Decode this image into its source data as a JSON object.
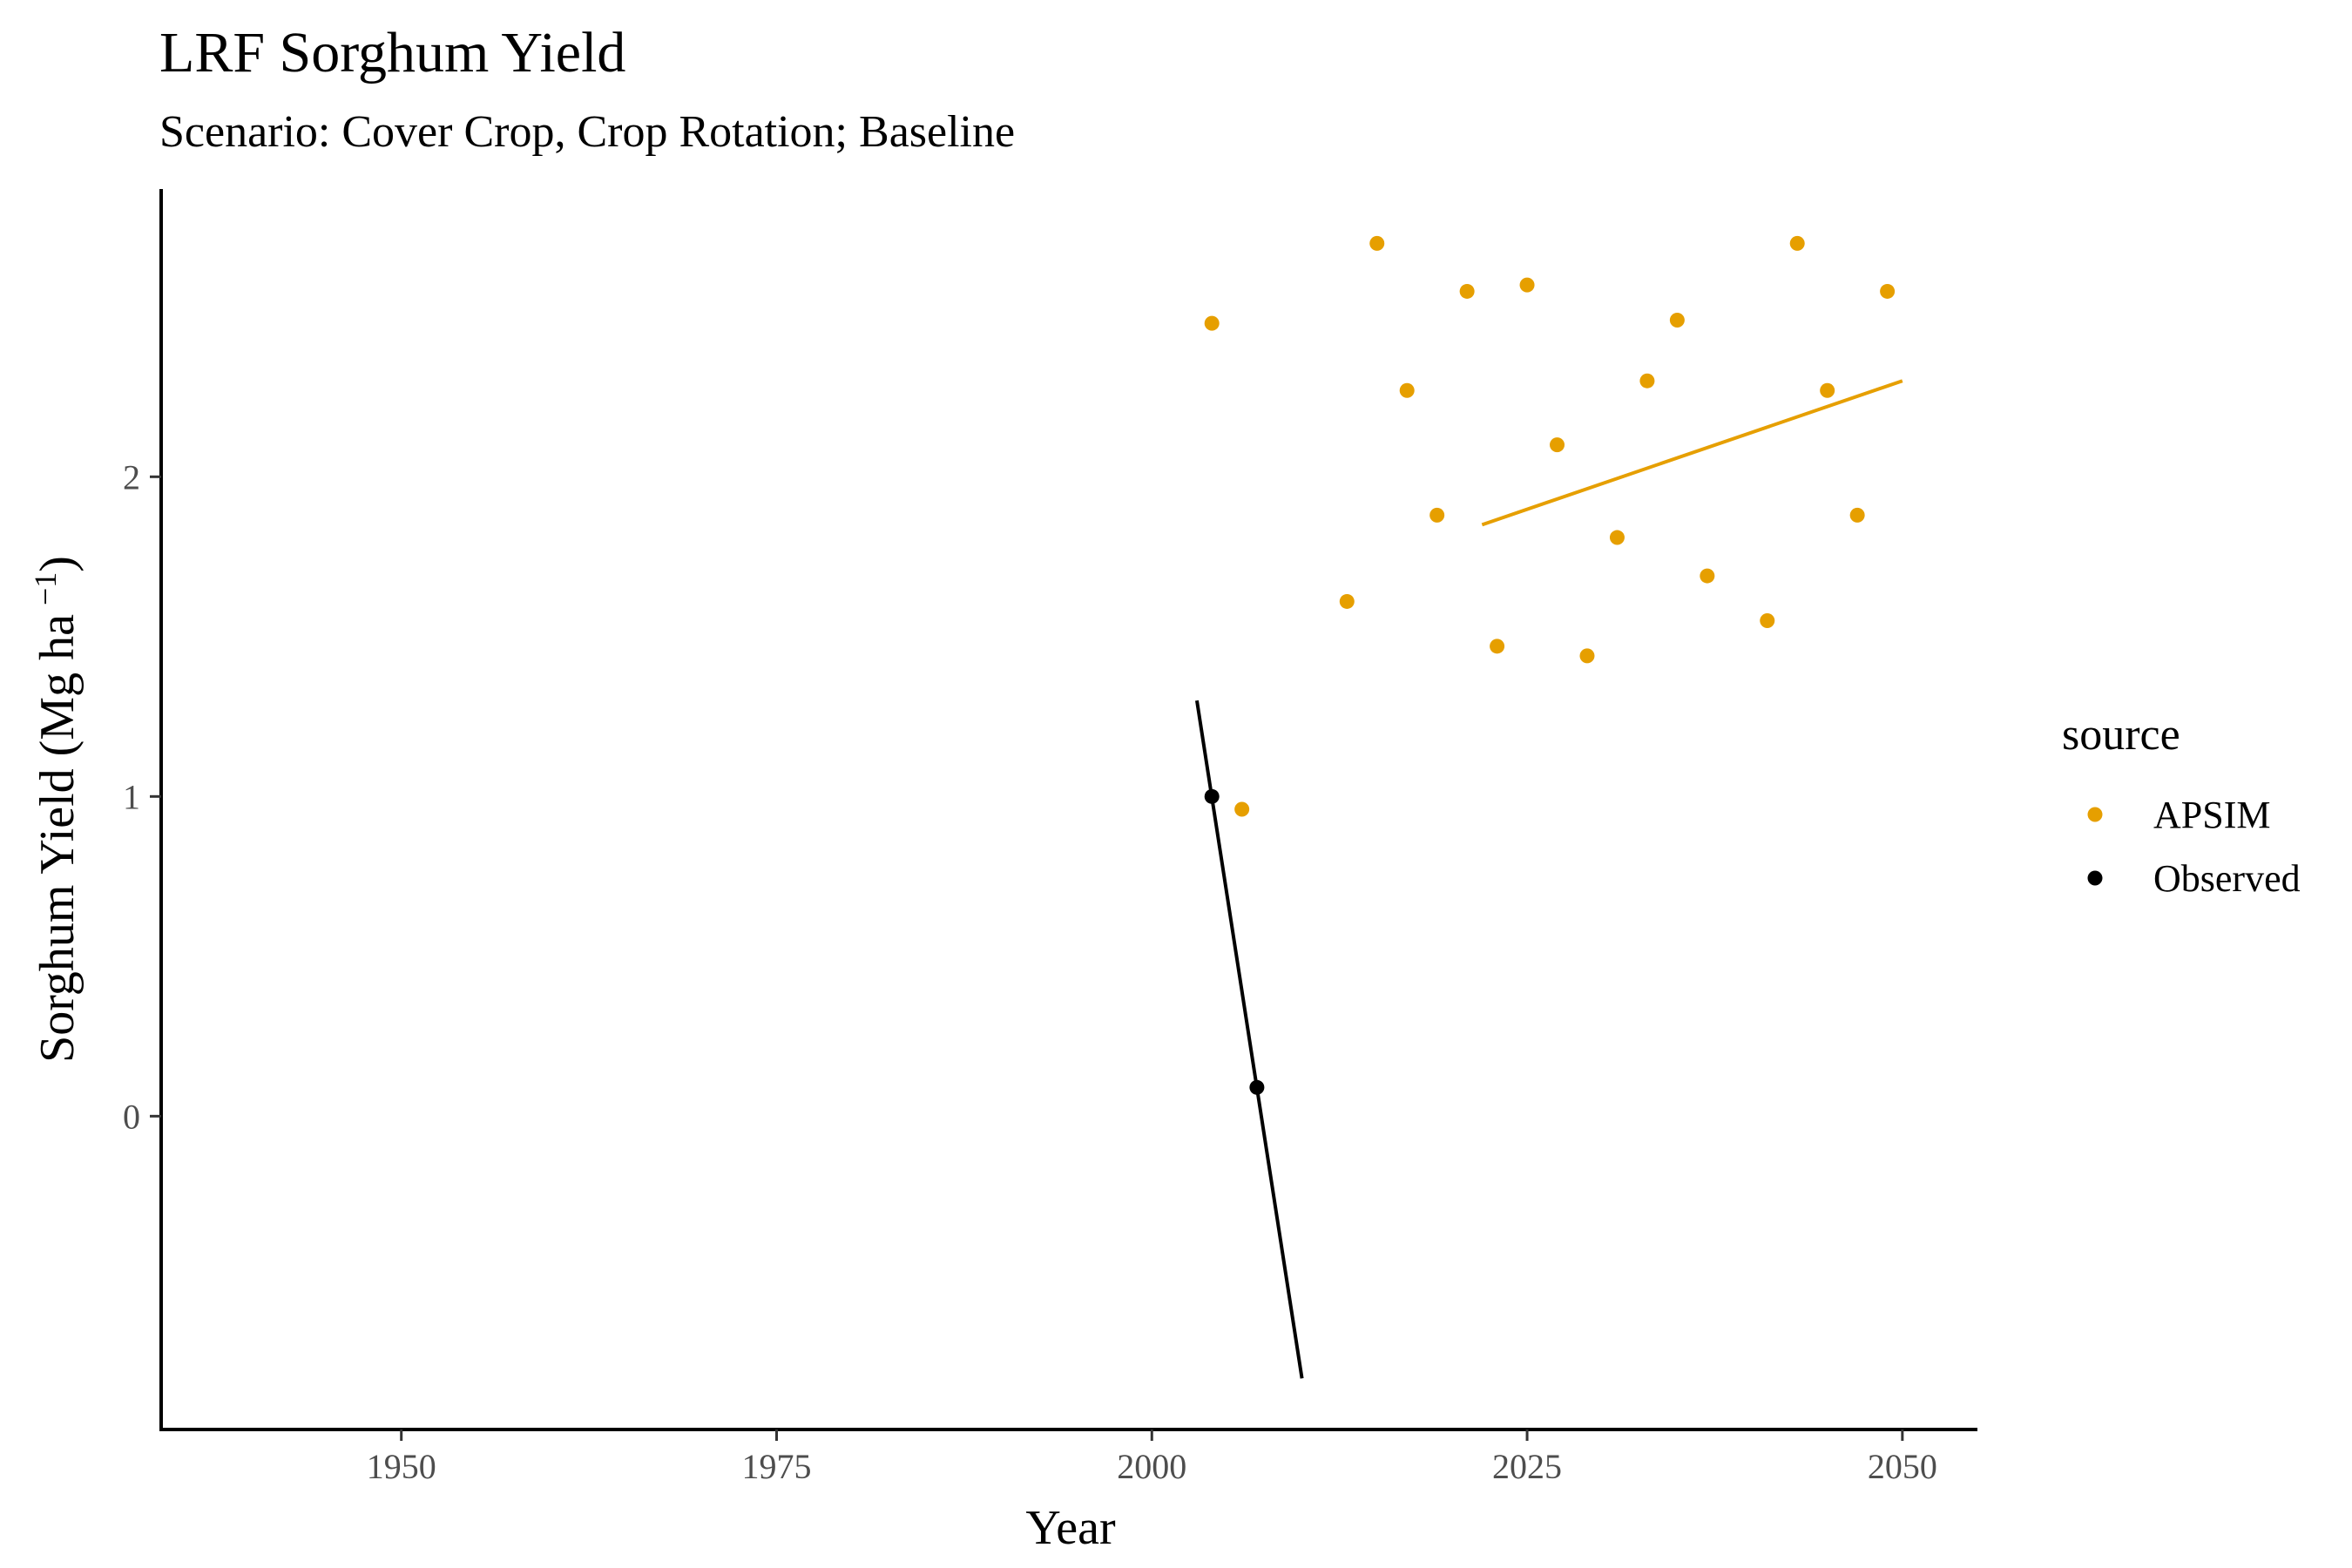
{
  "chart_data": {
    "type": "scatter",
    "title": "LRF Sorghum Yield",
    "subtitle": "Scenario: Cover Crop, Crop Rotation; Baseline",
    "xlabel": "Year",
    "ylabel_main": "Sorghum Yield (Mg ha",
    "ylabel_sup": "−1",
    "ylabel_close": ")",
    "xlim": [
      1934,
      2055
    ],
    "ylim": [
      -0.98,
      2.9
    ],
    "x_ticks": [
      1950,
      1975,
      2000,
      2025,
      2050
    ],
    "y_ticks": [
      0,
      1,
      2
    ],
    "grid": false,
    "legend_position": "right",
    "legend_title": "source",
    "series": [
      {
        "name": "APSIM",
        "color": "#E69F00",
        "points": [
          {
            "x": 2004,
            "y": 2.48
          },
          {
            "x": 2006,
            "y": 0.96
          },
          {
            "x": 2013,
            "y": 1.61
          },
          {
            "x": 2015,
            "y": 2.73
          },
          {
            "x": 2017,
            "y": 2.27
          },
          {
            "x": 2019,
            "y": 1.88
          },
          {
            "x": 2021,
            "y": 2.58
          },
          {
            "x": 2023,
            "y": 1.47
          },
          {
            "x": 2025,
            "y": 2.6
          },
          {
            "x": 2027,
            "y": 2.1
          },
          {
            "x": 2029,
            "y": 1.44
          },
          {
            "x": 2031,
            "y": 1.81
          },
          {
            "x": 2033,
            "y": 2.3
          },
          {
            "x": 2035,
            "y": 2.49
          },
          {
            "x": 2037,
            "y": 1.69
          },
          {
            "x": 2041,
            "y": 1.55
          },
          {
            "x": 2043,
            "y": 2.73
          },
          {
            "x": 2045,
            "y": 2.27
          },
          {
            "x": 2047,
            "y": 1.88
          },
          {
            "x": 2049,
            "y": 2.58
          }
        ],
        "trend": [
          {
            "x": 2022,
            "y": 1.85
          },
          {
            "x": 2050,
            "y": 2.3
          }
        ]
      },
      {
        "name": "Observed",
        "color": "#000000",
        "points": [
          {
            "x": 2004,
            "y": 1.0
          },
          {
            "x": 2007,
            "y": 0.09
          }
        ],
        "trend": [
          {
            "x": 2003,
            "y": 1.3
          },
          {
            "x": 2010,
            "y": -0.82
          }
        ]
      }
    ]
  }
}
